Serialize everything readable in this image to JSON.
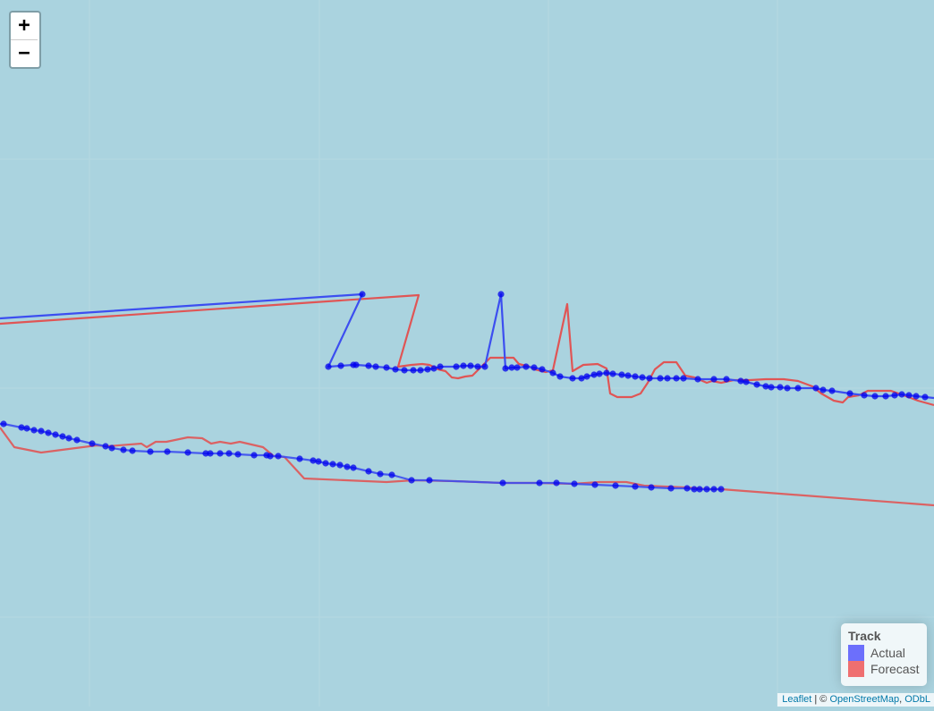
{
  "map": {
    "background_color": "#aad3df",
    "grid_color": "#b5d8e2"
  },
  "zoom": {
    "in_label": "+",
    "out_label": "−"
  },
  "legend": {
    "title": "Track",
    "items": [
      {
        "label": "Actual",
        "color": "#0000ff"
      },
      {
        "label": "Forecast",
        "color": "#ee0000"
      }
    ]
  },
  "attribution": {
    "leaflet": "Leaflet",
    "separator": " | © ",
    "osm": "OpenStreetMap",
    "comma": ", ",
    "odbl": "ODbL"
  },
  "colors": {
    "actual_line": "#3c4ef0",
    "actual_point": "#0000ee",
    "forecast_line": "#e05555"
  }
}
